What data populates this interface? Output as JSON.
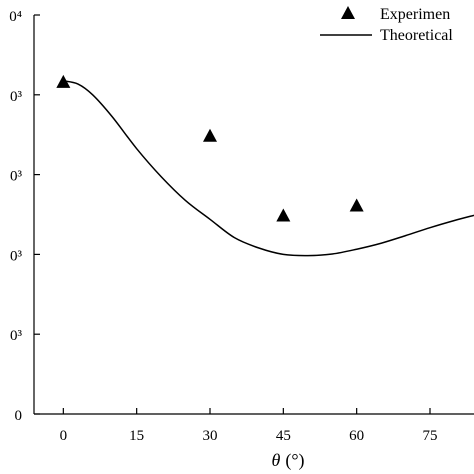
{
  "chart_data": {
    "type": "scatter",
    "x": {
      "ticks": [
        0,
        15,
        30,
        45,
        60,
        75
      ],
      "tick_labels": [
        "0",
        "15",
        "30",
        "45",
        "60",
        "75"
      ],
      "label_symbol": "θ",
      "label_unit": "(°)",
      "range": [
        -6,
        84
      ]
    },
    "y": {
      "ticks": [
        0,
        0.2,
        0.4,
        0.6,
        0.8,
        1.0
      ],
      "tick_labels": [
        "0",
        "0³",
        "0³",
        "0³",
        "0³",
        "0⁴"
      ],
      "range": [
        0,
        1.0
      ]
    },
    "series": [
      {
        "name": "Experimen",
        "kind": "scatter",
        "marker": "triangle",
        "color": "#000000",
        "x": [
          0,
          30,
          45,
          60
        ],
        "y": [
          0.83,
          0.695,
          0.495,
          0.52
        ]
      },
      {
        "name": "Theoretical",
        "kind": "line",
        "color": "#000000",
        "x": [
          0,
          3,
          6,
          10,
          15,
          20,
          25,
          30,
          35,
          40,
          45,
          50,
          55,
          60,
          65,
          70,
          75,
          80,
          84
        ],
        "y": [
          0.835,
          0.827,
          0.8,
          0.745,
          0.665,
          0.595,
          0.535,
          0.488,
          0.442,
          0.416,
          0.4,
          0.397,
          0.401,
          0.413,
          0.428,
          0.447,
          0.467,
          0.485,
          0.498
        ]
      }
    ],
    "legend": "top-right",
    "grid": false
  }
}
